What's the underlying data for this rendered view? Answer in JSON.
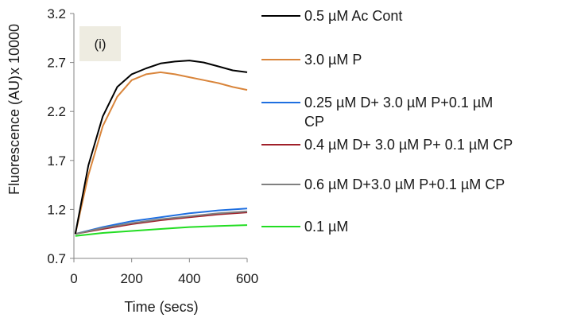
{
  "chart_data": {
    "type": "line",
    "title": "",
    "panel_label": "(i)",
    "xlabel": "Time (secs)",
    "ylabel": "Fluorescence (AU)",
    "y_multiplier": "x 10000",
    "xlim": [
      0,
      600
    ],
    "ylim": [
      0.7,
      3.2
    ],
    "x_ticks": [
      0,
      200,
      400,
      600
    ],
    "y_ticks": [
      "0.7",
      "1.2",
      "1.7",
      "2.2",
      "2.7",
      "3.2"
    ],
    "grid": false,
    "legend_position": "right",
    "series": [
      {
        "name": "0.5 µM Ac Cont",
        "color": "#000000",
        "x": [
          5,
          50,
          100,
          150,
          200,
          250,
          300,
          350,
          400,
          450,
          500,
          550,
          600
        ],
        "y": [
          0.95,
          1.65,
          2.15,
          2.45,
          2.58,
          2.64,
          2.69,
          2.71,
          2.72,
          2.7,
          2.66,
          2.62,
          2.6
        ]
      },
      {
        "name": "3.0 µM P",
        "color": "#d9853b",
        "x": [
          5,
          50,
          100,
          150,
          200,
          250,
          300,
          350,
          400,
          450,
          500,
          550,
          600
        ],
        "y": [
          0.95,
          1.55,
          2.05,
          2.35,
          2.52,
          2.58,
          2.6,
          2.58,
          2.55,
          2.52,
          2.49,
          2.45,
          2.42
        ]
      },
      {
        "name": "0.25 µM D+ 3.0 µM P+0.1 µM CP",
        "color": "#1f6fe0",
        "x": [
          5,
          100,
          200,
          300,
          400,
          500,
          600
        ],
        "y": [
          0.95,
          1.02,
          1.08,
          1.12,
          1.16,
          1.19,
          1.21
        ]
      },
      {
        "name": "0.4 µM D+ 3.0 µM P+ 0.1 µM CP",
        "color": "#a0202a",
        "x": [
          5,
          100,
          200,
          300,
          400,
          500,
          600
        ],
        "y": [
          0.95,
          1.0,
          1.05,
          1.09,
          1.12,
          1.15,
          1.17
        ]
      },
      {
        "name": "0.6 µM D+3.0 µM P+0.1 µM CP",
        "color": "#808080",
        "x": [
          5,
          100,
          200,
          300,
          400,
          500,
          600
        ],
        "y": [
          0.95,
          1.01,
          1.06,
          1.1,
          1.13,
          1.16,
          1.18
        ]
      },
      {
        "name": "0.1 µM",
        "color": "#22dd22",
        "x": [
          5,
          100,
          200,
          300,
          400,
          500,
          600
        ],
        "y": [
          0.93,
          0.96,
          0.98,
          1.0,
          1.02,
          1.03,
          1.04
        ]
      }
    ]
  }
}
